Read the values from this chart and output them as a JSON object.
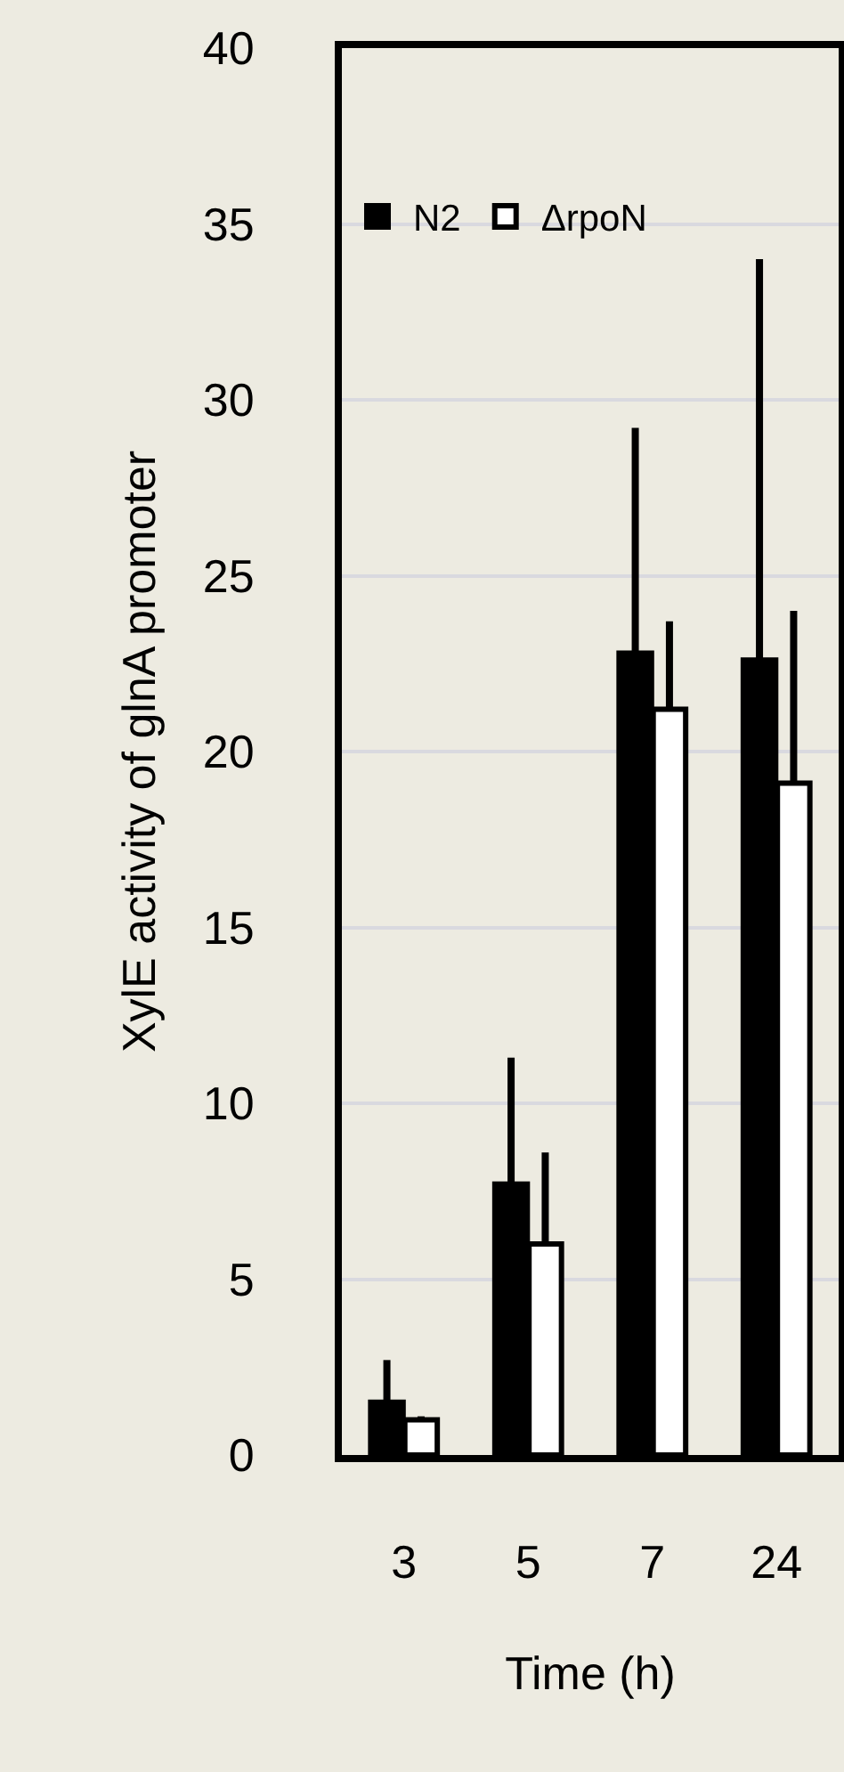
{
  "chart_data": {
    "type": "bar",
    "xlabel": "Time (h)",
    "ylabel": "XylE activity of glnA promoter",
    "categories": [
      "3",
      "5",
      "7",
      "24"
    ],
    "series": [
      {
        "name": "N2",
        "color": "#000000",
        "values": [
          1.5,
          7.7,
          22.8,
          22.6
        ],
        "errors": [
          [
            1.5,
            2.7
          ],
          [
            7.7,
            11.3
          ],
          [
            22.8,
            29.2
          ],
          [
            22.6,
            34.0
          ]
        ]
      },
      {
        "name": "ΔrpoN",
        "color": "#ffffff",
        "values": [
          1.0,
          6.0,
          21.2,
          19.1
        ],
        "errors": [
          [
            1.0,
            1.1
          ],
          [
            6.0,
            8.6
          ],
          [
            21.2,
            23.7
          ],
          [
            19.1,
            24.0
          ]
        ]
      }
    ],
    "ylim": [
      0,
      40
    ],
    "yticks": [
      0,
      5,
      10,
      15,
      20,
      25,
      30,
      35,
      40
    ],
    "grid": "y",
    "legend": "top left"
  }
}
